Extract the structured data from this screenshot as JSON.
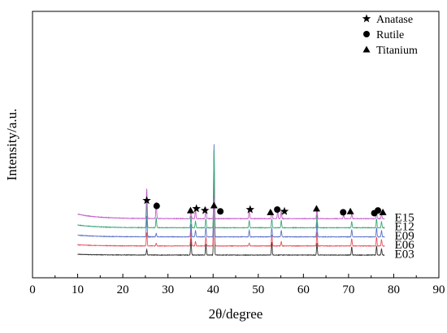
{
  "chart_data": {
    "type": "line",
    "title": "",
    "xlabel": "2θ/degree",
    "ylabel": "Intensity/a.u.",
    "xlim": [
      0,
      90
    ],
    "xticks": [
      0,
      10,
      20,
      30,
      40,
      50,
      60,
      70,
      80,
      90
    ],
    "yticks_shown": false,
    "grid": false,
    "legend_position": "top-right",
    "legend": [
      {
        "symbol": "star",
        "label": "Anatase"
      },
      {
        "symbol": "circle",
        "label": "Rutile"
      },
      {
        "symbol": "triangle",
        "label": "Titanium"
      }
    ],
    "x_range": [
      10,
      78
    ],
    "series": [
      {
        "name": "E03",
        "color": "#333333",
        "baseline": 0,
        "rise": 0.08,
        "peaks": [
          [
            25.3,
            0.6
          ],
          [
            35.1,
            1.8
          ],
          [
            38.4,
            1.2
          ],
          [
            40.2,
            9.6
          ],
          [
            53.0,
            1.4
          ],
          [
            63.0,
            1.3
          ],
          [
            70.7,
            0.9
          ],
          [
            76.2,
            1.0
          ],
          [
            77.3,
            0.7
          ]
        ]
      },
      {
        "name": "E06",
        "color": "#e8525a",
        "baseline": 1,
        "rise": 0.12,
        "peaks": [
          [
            25.3,
            1.5
          ],
          [
            27.4,
            0.3
          ],
          [
            35.1,
            1.8
          ],
          [
            36.1,
            0.5
          ],
          [
            38.4,
            1.0
          ],
          [
            40.2,
            10.4
          ],
          [
            48.0,
            0.3
          ],
          [
            53.0,
            1.2
          ],
          [
            55.1,
            0.5
          ],
          [
            63.0,
            1.5
          ],
          [
            70.7,
            0.8
          ],
          [
            76.2,
            1.0
          ],
          [
            77.3,
            0.7
          ]
        ]
      },
      {
        "name": "E09",
        "color": "#5b73c9",
        "baseline": 2,
        "rise": 0.18,
        "peaks": [
          [
            25.3,
            2.3
          ],
          [
            27.4,
            0.4
          ],
          [
            35.1,
            1.4
          ],
          [
            36.1,
            0.7
          ],
          [
            38.4,
            1.0
          ],
          [
            40.2,
            10.2
          ],
          [
            48.0,
            0.7
          ],
          [
            53.0,
            1.0
          ],
          [
            55.1,
            0.7
          ],
          [
            63.0,
            1.6
          ],
          [
            70.7,
            0.8
          ],
          [
            76.2,
            1.0
          ],
          [
            77.3,
            0.7
          ]
        ]
      },
      {
        "name": "E12",
        "color": "#3aa87a",
        "baseline": 3,
        "rise": 0.3,
        "peaks": [
          [
            25.3,
            3.1
          ],
          [
            27.4,
            1.1
          ],
          [
            35.1,
            1.3
          ],
          [
            36.1,
            0.7
          ],
          [
            38.4,
            1.0
          ],
          [
            40.2,
            8.6
          ],
          [
            48.0,
            0.8
          ],
          [
            53.0,
            1.0
          ],
          [
            55.1,
            0.8
          ],
          [
            63.0,
            1.4
          ],
          [
            70.7,
            0.7
          ],
          [
            76.2,
            1.0
          ],
          [
            77.3,
            0.7
          ]
        ]
      },
      {
        "name": "E15",
        "color": "#c45ccc",
        "baseline": 4,
        "rise": 0.5,
        "peaks": [
          [
            25.3,
            3.3
          ],
          [
            27.4,
            1.8
          ],
          [
            35.1,
            1.0
          ],
          [
            36.1,
            1.0
          ],
          [
            38.4,
            1.3
          ],
          [
            40.2,
            2.2
          ],
          [
            48.0,
            1.0
          ],
          [
            53.0,
            0.9
          ],
          [
            54.3,
            0.9
          ],
          [
            55.1,
            0.9
          ],
          [
            63.0,
            1.1
          ],
          [
            68.9,
            0.5
          ],
          [
            70.7,
            0.6
          ],
          [
            76.2,
            0.8
          ],
          [
            77.3,
            0.6
          ]
        ]
      }
    ],
    "annotations": [
      {
        "symbol": "star",
        "x": 25.3,
        "level": 6.0
      },
      {
        "symbol": "circle",
        "x": 27.5,
        "level": 5.4
      },
      {
        "symbol": "triangle",
        "x": 35.0,
        "level": 4.9
      },
      {
        "symbol": "star",
        "x": 36.3,
        "level": 5.1
      },
      {
        "symbol": "star",
        "x": 38.2,
        "level": 4.9
      },
      {
        "symbol": "triangle",
        "x": 40.2,
        "level": 5.45
      },
      {
        "symbol": "circle",
        "x": 41.6,
        "level": 4.8
      },
      {
        "symbol": "star",
        "x": 48.2,
        "level": 5.0
      },
      {
        "symbol": "triangle",
        "x": 52.7,
        "level": 4.7
      },
      {
        "symbol": "circle",
        "x": 54.2,
        "level": 5.0
      },
      {
        "symbol": "star",
        "x": 55.8,
        "level": 4.8
      },
      {
        "symbol": "triangle",
        "x": 62.9,
        "level": 5.1
      },
      {
        "symbol": "circle",
        "x": 68.8,
        "level": 4.7
      },
      {
        "symbol": "triangle",
        "x": 70.4,
        "level": 4.8
      },
      {
        "symbol": "circle",
        "x": 75.7,
        "level": 4.6
      },
      {
        "symbol": "circle",
        "x": 76.5,
        "level": 4.9
      },
      {
        "symbol": "triangle",
        "x": 77.6,
        "level": 4.7
      }
    ]
  }
}
